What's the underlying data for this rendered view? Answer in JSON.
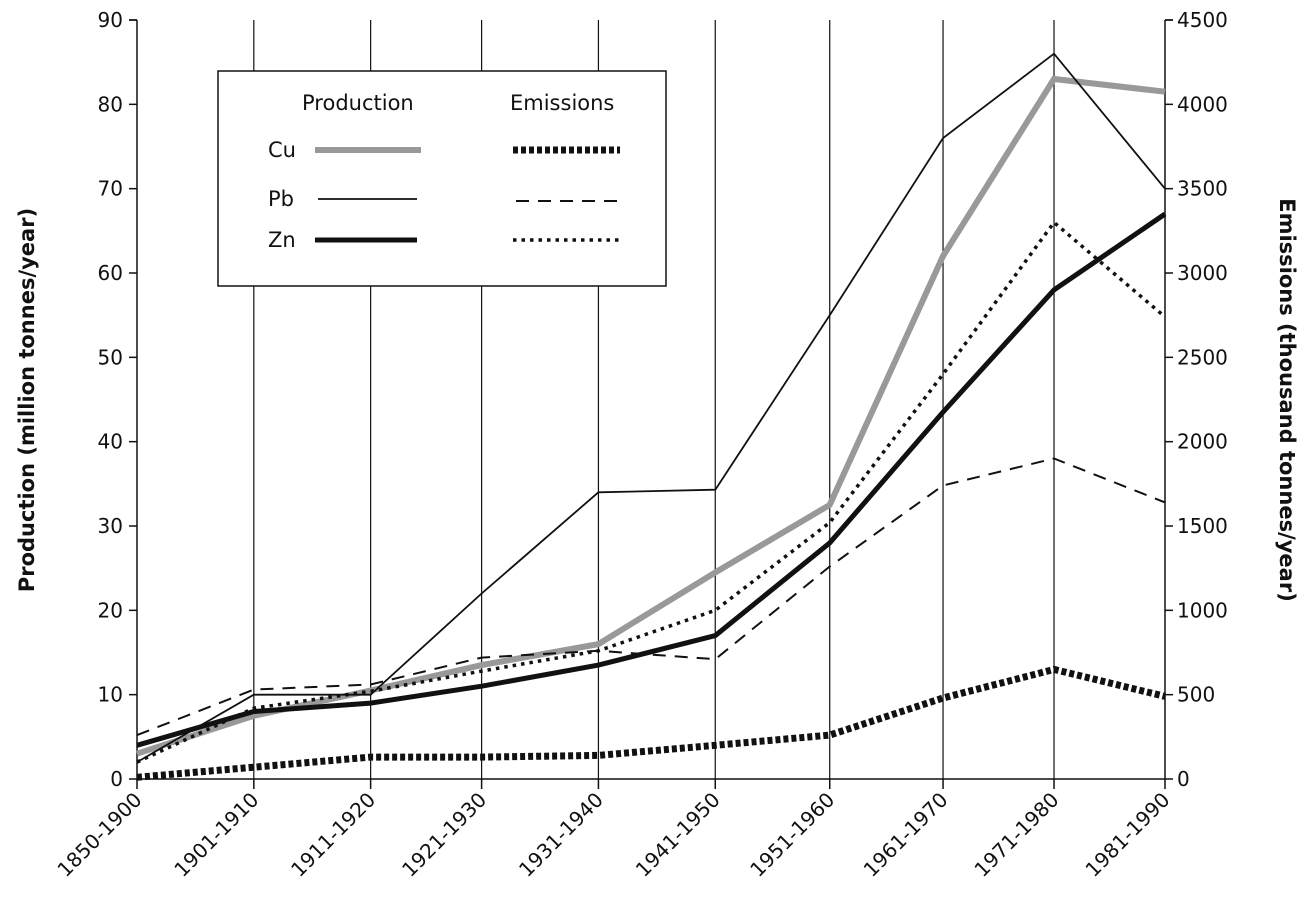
{
  "chart_data": {
    "type": "line",
    "title": "",
    "categories": [
      "1850-1900",
      "1901-1910",
      "1911-1920",
      "1921-1930",
      "1931-1940",
      "1941-1950",
      "1951-1960",
      "1961-1970",
      "1971-1980",
      "1981-1990"
    ],
    "x_positions": [
      0,
      1,
      2,
      2.95,
      3.95,
      4.95,
      5.93,
      6.9,
      7.85,
      8.8
    ],
    "y_left": {
      "label": "Production (million tonnes/year)",
      "ylim": [
        0,
        90
      ],
      "ticks": [
        "0",
        "10",
        "20",
        "30",
        "40",
        "50",
        "60",
        "70",
        "80",
        "90"
      ]
    },
    "y_right": {
      "label": "Emissions (thousand tonnes/year)",
      "ylim": [
        0,
        4500
      ],
      "ticks": [
        "0",
        "500",
        "1000",
        "1500",
        "2000",
        "2500",
        "3000",
        "3500",
        "4000",
        "4500"
      ]
    },
    "grid": "vertical",
    "legend": {
      "position": "top-left",
      "production_header": "Production",
      "emissions_header": "Emissions",
      "metals": [
        "Cu",
        "Pb",
        "Zn"
      ]
    },
    "series": [
      {
        "name": "Cu",
        "group": "production",
        "axis": "left",
        "style": "thick-gray",
        "values": [
          3,
          7.5,
          10.5,
          13.5,
          16,
          24.5,
          32.5,
          62,
          83,
          81.5
        ]
      },
      {
        "name": "Pb",
        "group": "production",
        "axis": "left",
        "style": "thin-solid",
        "values": [
          2,
          10,
          10,
          22,
          34,
          34.3,
          55,
          76,
          86,
          70
        ]
      },
      {
        "name": "Zn",
        "group": "production",
        "axis": "left",
        "style": "thick-black",
        "values": [
          4,
          8,
          9,
          11,
          13.5,
          17,
          28,
          43.5,
          58,
          67
        ]
      },
      {
        "name": "Cu",
        "group": "emissions",
        "axis": "right",
        "style": "thick-dotted",
        "values": [
          10,
          70,
          130,
          130,
          140,
          200,
          260,
          480,
          650,
          490
        ]
      },
      {
        "name": "Pb",
        "group": "emissions",
        "axis": "right",
        "style": "dashed",
        "values": [
          260,
          530,
          560,
          720,
          760,
          710,
          1260,
          1740,
          1900,
          1640
        ]
      },
      {
        "name": "Zn",
        "group": "emissions",
        "axis": "right",
        "style": "dotted",
        "values": [
          100,
          420,
          520,
          640,
          760,
          1000,
          1520,
          2400,
          3300,
          2740
        ]
      }
    ],
    "colors": {
      "axis": "#111111",
      "cu_production": "#999999",
      "line": "#111111"
    }
  }
}
